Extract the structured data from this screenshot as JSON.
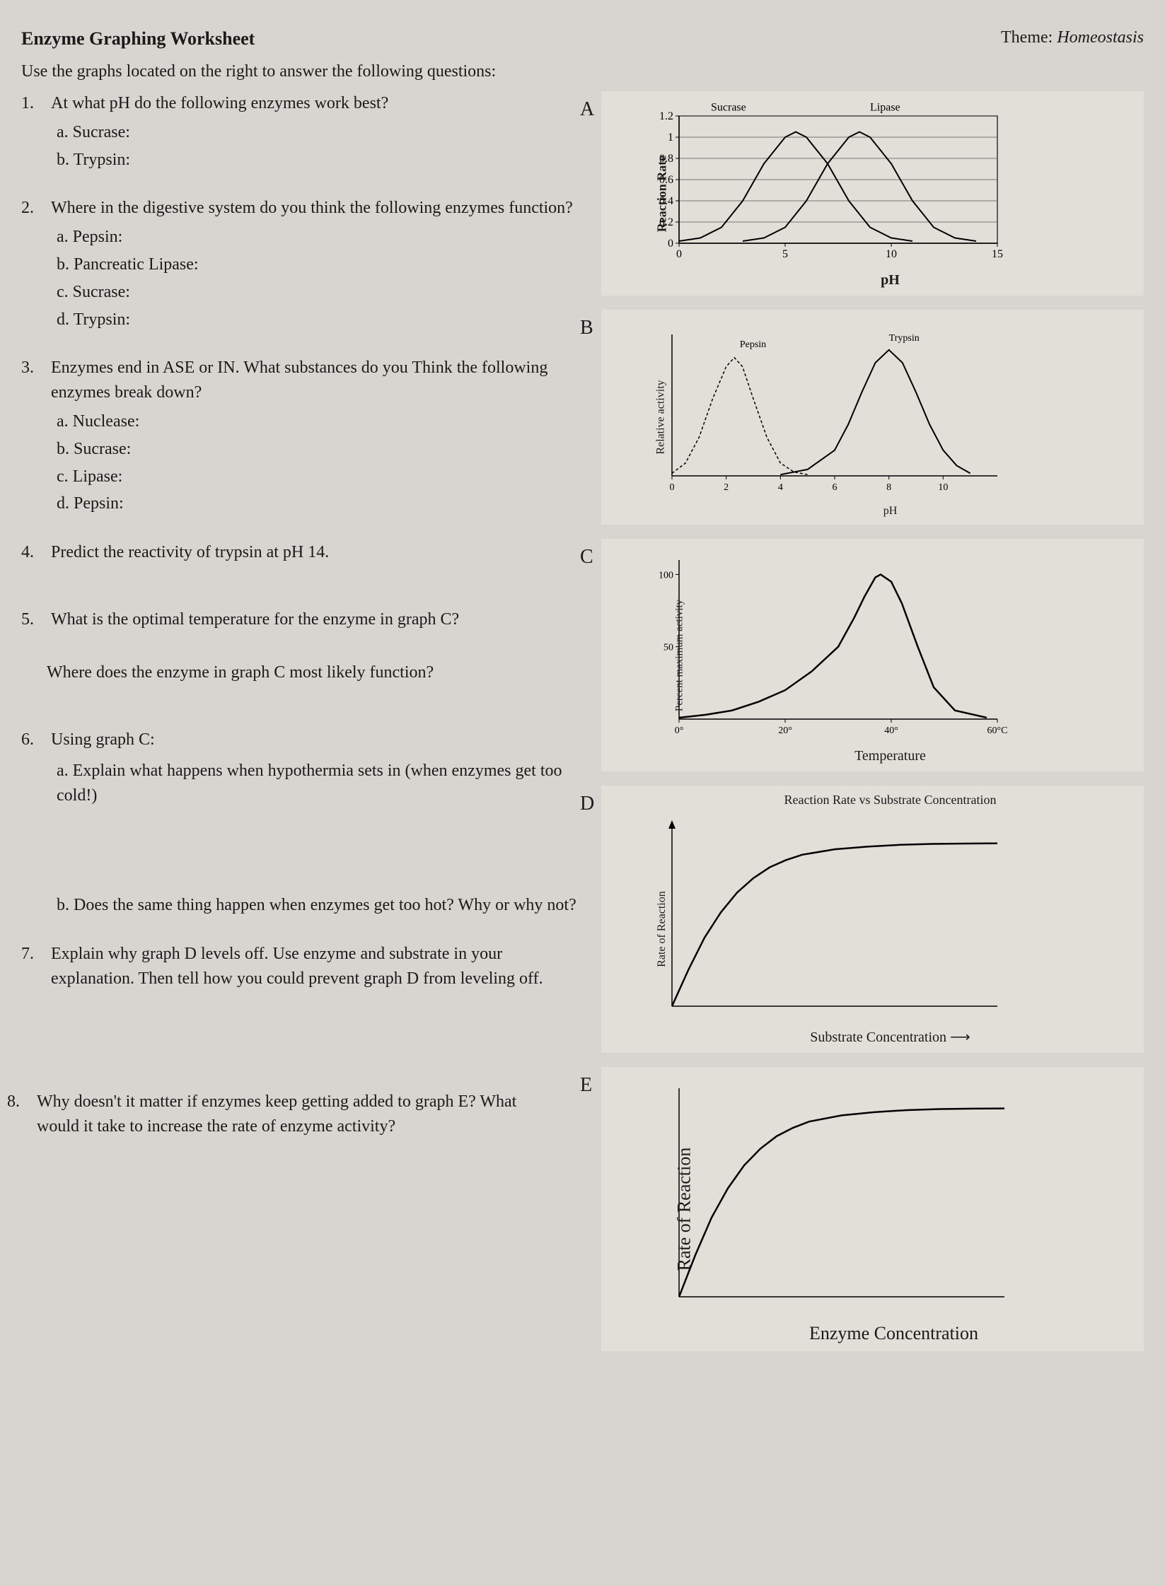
{
  "header": {
    "title": "Enzyme Graphing Worksheet",
    "theme_prefix": "Theme: ",
    "theme_name": "Homeostasis"
  },
  "instructions": "Use the graphs located on the right to answer the following questions:",
  "questions": {
    "q1": {
      "num": "1.",
      "text": "At what pH do the following enzymes work best?",
      "subs": {
        "a": "a.   Sucrase:",
        "b": "b.   Trypsin:"
      }
    },
    "q2": {
      "num": "2.",
      "text": "Where in the digestive system do you think the following enzymes function?",
      "subs": {
        "a": "a.   Pepsin:",
        "b": "b.   Pancreatic Lipase:",
        "c": "c.   Sucrase:",
        "d": "d.   Trypsin:"
      }
    },
    "q3": {
      "num": "3.",
      "text": "Enzymes end in ASE or IN.  What substances do you Think the following enzymes break down?",
      "subs": {
        "a": "a.   Nuclease:",
        "b": "b.   Sucrase:",
        "c": "c.   Lipase:",
        "d": "d.   Pepsin:"
      }
    },
    "q4": {
      "num": "4.",
      "text": "Predict the reactivity of trypsin at pH 14."
    },
    "q5": {
      "num": "5.",
      "text": "What is the optimal temperature for the enzyme in graph C?",
      "follow": "Where does the enzyme in graph C most likely function?"
    },
    "q6": {
      "num": "6.",
      "text": "Using graph C:",
      "suba": "a.   Explain what happens when hypothermia sets in (when enzymes get too cold!)",
      "subb": "b.   Does the same thing happen when enzymes get too hot?  Why or why not?"
    },
    "q7": {
      "num": "7.",
      "text": "Explain why graph D levels off.  Use enzyme and substrate in your explanation.  Then tell how you could prevent graph D from leveling off."
    },
    "q8": {
      "num": "8.",
      "text": "Why doesn't it matter if enzymes keep getting added to graph E?  What would it take to increase the rate of enzyme activity?"
    }
  },
  "graphA": {
    "label": "A",
    "type": "line",
    "ylabel": "Reaction Rate",
    "xlabel": "pH",
    "xlim": [
      0,
      15
    ],
    "ylim": [
      0,
      1.2
    ],
    "xticks": [
      0,
      5,
      10,
      15
    ],
    "yticks": [
      0,
      0.2,
      0.4,
      0.6,
      0.8,
      1,
      1.2
    ],
    "series": [
      {
        "name": "Sucrase",
        "label_x": 1.5,
        "label_y": 1.25,
        "color": "#000",
        "width": 2,
        "points": [
          [
            0,
            0.02
          ],
          [
            1,
            0.05
          ],
          [
            2,
            0.15
          ],
          [
            3,
            0.4
          ],
          [
            4,
            0.75
          ],
          [
            5,
            1.0
          ],
          [
            5.5,
            1.05
          ],
          [
            6,
            1.0
          ],
          [
            7,
            0.75
          ],
          [
            8,
            0.4
          ],
          [
            9,
            0.15
          ],
          [
            10,
            0.05
          ],
          [
            11,
            0.02
          ]
        ]
      },
      {
        "name": "Lipase",
        "label_x": 9,
        "label_y": 1.25,
        "color": "#000",
        "width": 2,
        "points": [
          [
            3,
            0.02
          ],
          [
            4,
            0.05
          ],
          [
            5,
            0.15
          ],
          [
            6,
            0.4
          ],
          [
            7,
            0.75
          ],
          [
            8,
            1.0
          ],
          [
            8.5,
            1.05
          ],
          [
            9,
            1.0
          ],
          [
            10,
            0.75
          ],
          [
            11,
            0.4
          ],
          [
            12,
            0.15
          ],
          [
            13,
            0.05
          ],
          [
            14,
            0.02
          ]
        ]
      }
    ],
    "background": "#e6e3dd",
    "grid_color": "#555",
    "font_size": 16
  },
  "graphB": {
    "label": "B",
    "type": "line",
    "ylabel": "Relative activity",
    "xlabel": "pH",
    "xlim": [
      0,
      12
    ],
    "ylim": [
      0,
      1.1
    ],
    "xticks": [
      0,
      2,
      4,
      6,
      8,
      10
    ],
    "series": [
      {
        "name": "Pepsin",
        "label_x": 2.5,
        "label_y": 1.0,
        "color": "#000",
        "width": 1.5,
        "dash": "4 3",
        "points": [
          [
            0,
            0.02
          ],
          [
            0.5,
            0.1
          ],
          [
            1,
            0.3
          ],
          [
            1.5,
            0.6
          ],
          [
            2,
            0.85
          ],
          [
            2.3,
            0.92
          ],
          [
            2.6,
            0.85
          ],
          [
            3,
            0.6
          ],
          [
            3.5,
            0.3
          ],
          [
            4,
            0.1
          ],
          [
            4.5,
            0.03
          ],
          [
            5,
            0.01
          ]
        ]
      },
      {
        "name": "Trypsin",
        "label_x": 8,
        "label_y": 1.05,
        "color": "#000",
        "width": 2,
        "points": [
          [
            4,
            0.01
          ],
          [
            5,
            0.05
          ],
          [
            6,
            0.2
          ],
          [
            6.5,
            0.4
          ],
          [
            7,
            0.65
          ],
          [
            7.5,
            0.88
          ],
          [
            8,
            0.98
          ],
          [
            8.5,
            0.88
          ],
          [
            9,
            0.65
          ],
          [
            9.5,
            0.4
          ],
          [
            10,
            0.2
          ],
          [
            10.5,
            0.08
          ],
          [
            11,
            0.02
          ]
        ]
      }
    ],
    "background": "#e6e3dd",
    "font_size": 14
  },
  "graphC": {
    "label": "C",
    "type": "line",
    "ylabel": "Percent maximum activity",
    "xlabel": "Temperature",
    "xlim": [
      0,
      60
    ],
    "ylim": [
      0,
      110
    ],
    "xticks": [
      "0°",
      "20°",
      "40°",
      "60°C"
    ],
    "xtick_positions": [
      0,
      20,
      40,
      60
    ],
    "yticks": [
      50,
      100
    ],
    "series": [
      {
        "name": "activity",
        "color": "#000",
        "width": 2.5,
        "points": [
          [
            0,
            1
          ],
          [
            5,
            3
          ],
          [
            10,
            6
          ],
          [
            15,
            12
          ],
          [
            20,
            20
          ],
          [
            25,
            33
          ],
          [
            30,
            50
          ],
          [
            33,
            70
          ],
          [
            35,
            85
          ],
          [
            37,
            98
          ],
          [
            38,
            100
          ],
          [
            40,
            95
          ],
          [
            42,
            80
          ],
          [
            45,
            50
          ],
          [
            48,
            22
          ],
          [
            52,
            6
          ],
          [
            58,
            1
          ]
        ]
      }
    ],
    "background": "#e6e3dd",
    "font_size": 14
  },
  "graphD": {
    "label": "D",
    "type": "line",
    "title": "Reaction Rate vs Substrate Concentration",
    "ylabel": "Rate of Reaction",
    "xlabel": "Substrate Concentration",
    "xlim": [
      0,
      10
    ],
    "ylim": [
      0,
      10
    ],
    "series": [
      {
        "name": "rate",
        "color": "#000",
        "width": 2.5,
        "points": [
          [
            0,
            0
          ],
          [
            0.5,
            2
          ],
          [
            1,
            3.8
          ],
          [
            1.5,
            5.2
          ],
          [
            2,
            6.3
          ],
          [
            2.5,
            7.1
          ],
          [
            3,
            7.7
          ],
          [
            3.5,
            8.1
          ],
          [
            4,
            8.4
          ],
          [
            5,
            8.7
          ],
          [
            6,
            8.85
          ],
          [
            7,
            8.95
          ],
          [
            8,
            9
          ],
          [
            9,
            9.02
          ],
          [
            10,
            9.03
          ]
        ]
      }
    ],
    "arrow_y": true,
    "arrow_x": true,
    "background": "#e6e3dd",
    "font_size": 16
  },
  "graphE": {
    "label": "E",
    "type": "line",
    "ylabel": "Rate of Reaction",
    "xlabel": "Enzyme Concentration",
    "xlim": [
      0,
      10
    ],
    "ylim": [
      0,
      10
    ],
    "series": [
      {
        "name": "rate",
        "color": "#000",
        "width": 2.5,
        "points": [
          [
            0,
            0
          ],
          [
            0.5,
            2
          ],
          [
            1,
            3.8
          ],
          [
            1.5,
            5.2
          ],
          [
            2,
            6.3
          ],
          [
            2.5,
            7.1
          ],
          [
            3,
            7.7
          ],
          [
            3.5,
            8.1
          ],
          [
            4,
            8.4
          ],
          [
            5,
            8.7
          ],
          [
            6,
            8.85
          ],
          [
            7,
            8.95
          ],
          [
            8,
            9
          ],
          [
            9,
            9.02
          ],
          [
            10,
            9.03
          ]
        ]
      }
    ],
    "background": "#e6e3dd",
    "font_size": 20
  }
}
